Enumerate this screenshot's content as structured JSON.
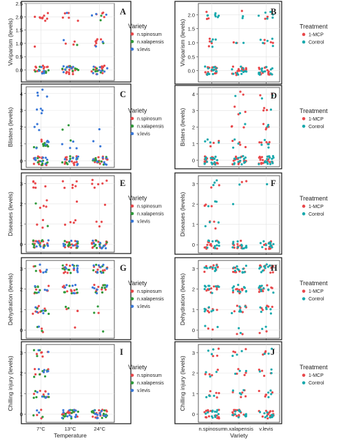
{
  "figure": {
    "x_axis_left": "Temperature",
    "x_axis_right": "Variety"
  },
  "colors": {
    "n.spinosum": "#e8474a",
    "n.xalapensis": "#2f9a3a",
    "v.levis": "#3a78d8",
    "1-MCP": "#e8474a",
    "Control": "#18a9ad"
  },
  "chart_data": [
    {
      "type": "scatter",
      "panel": "A",
      "ylabel": "Viviparism (levels)",
      "x_categories": [
        "7°C",
        "13°C",
        "24°C"
      ],
      "show_x_labels": false,
      "ylim": [
        -0.4,
        2.5
      ],
      "yticks": [
        0,
        0.5,
        1,
        1.5,
        2,
        2.5
      ],
      "ytick_labels": [
        "0.0",
        "0.5",
        "1.0",
        "1.5",
        "2.0",
        "2.5"
      ],
      "legend": {
        "title": "Variety",
        "entries": [
          "n.spinosum",
          "n.xalapensis",
          "v.levis"
        ],
        "keys": [
          "n.spinosum",
          "n.xalapensis",
          "v.levis"
        ]
      },
      "counts": [
        {
          "y": 0,
          "per_x": [
            [
              14,
              8,
              6
            ],
            [
              12,
              8,
              7
            ],
            [
              12,
              6,
              8
            ]
          ]
        },
        {
          "y": 1,
          "per_x": [
            [
              1,
              0,
              0
            ],
            [
              3,
              1,
              1
            ],
            [
              6,
              1,
              2
            ]
          ]
        },
        {
          "y": 2,
          "per_x": [
            [
              10,
              0,
              0
            ],
            [
              5,
              0,
              1
            ],
            [
              4,
              2,
              3
            ]
          ]
        }
      ]
    },
    {
      "type": "scatter",
      "panel": "B",
      "ylabel": "Viviparism (levels)",
      "x_categories": [
        "n.spinosum",
        "n.xalapensis",
        "v.levis"
      ],
      "show_x_labels": false,
      "ylim": [
        -0.4,
        2.4
      ],
      "yticks": [
        0,
        0.5,
        1,
        1.5,
        2
      ],
      "ytick_labels": [
        "0.0",
        "0.5",
        "1.0",
        "1.5",
        "2.0"
      ],
      "legend": {
        "title": "Treatment",
        "entries": [
          "1-MCP",
          "Control"
        ],
        "keys": [
          "1-MCP",
          "Control"
        ]
      },
      "counts": [
        {
          "y": 0,
          "per_x": [
            [
              14,
              14
            ],
            [
              14,
              12
            ],
            [
              14,
              14
            ]
          ]
        },
        {
          "y": 1,
          "per_x": [
            [
              4,
              4
            ],
            [
              2,
              2
            ],
            [
              4,
              5
            ]
          ]
        },
        {
          "y": 2,
          "per_x": [
            [
              3,
              7
            ],
            [
              1,
              2
            ],
            [
              2,
              6
            ]
          ]
        }
      ]
    },
    {
      "type": "scatter",
      "panel": "C",
      "ylabel": "Blisters (levels)",
      "x_categories": [
        "7°C",
        "13°C",
        "24°C"
      ],
      "show_x_labels": false,
      "ylim": [
        -0.4,
        4.4
      ],
      "yticks": [
        0,
        1,
        2,
        3,
        4
      ],
      "ytick_labels": [
        "0",
        "1",
        "2",
        "3",
        "4"
      ],
      "legend": {
        "title": "Variety",
        "entries": [
          "n.spinosum",
          "n.xalapensis",
          "v.levis"
        ],
        "keys": [
          "n.spinosum",
          "n.xalapensis",
          "v.levis"
        ]
      },
      "counts": [
        {
          "y": 0,
          "per_x": [
            [
              12,
              8,
              8
            ],
            [
              12,
              8,
              8
            ],
            [
              12,
              8,
              8
            ]
          ]
        },
        {
          "y": 1,
          "per_x": [
            [
              4,
              9,
              5
            ],
            [
              0,
              1,
              4
            ],
            [
              0,
              0,
              2
            ]
          ]
        },
        {
          "y": 2,
          "per_x": [
            [
              0,
              0,
              3
            ],
            [
              0,
              2,
              0
            ],
            [
              0,
              0,
              1
            ]
          ]
        },
        {
          "y": 3,
          "per_x": [
            [
              0,
              0,
              4
            ],
            [
              0,
              0,
              0
            ],
            [
              0,
              0,
              0
            ]
          ]
        },
        {
          "y": 4,
          "per_x": [
            [
              0,
              0,
              4
            ],
            [
              0,
              0,
              0
            ],
            [
              0,
              0,
              0
            ]
          ]
        }
      ]
    },
    {
      "type": "scatter",
      "panel": "D",
      "ylabel": "Bisters (levels)",
      "x_categories": [
        "n.spinosum",
        "n.xalapensis",
        "v.levis"
      ],
      "show_x_labels": false,
      "ylim": [
        -0.4,
        4.4
      ],
      "yticks": [
        0,
        1,
        2,
        3,
        4
      ],
      "ytick_labels": [
        "0",
        "1",
        "2",
        "3",
        "4"
      ],
      "legend": {
        "title": "Treatment",
        "entries": [
          "1-MCP",
          "Control"
        ],
        "keys": [
          "1-MCP",
          "Control"
        ]
      },
      "counts": [
        {
          "y": 0,
          "per_x": [
            [
              16,
              16
            ],
            [
              16,
              14
            ],
            [
              16,
              16
            ]
          ]
        },
        {
          "y": 1,
          "per_x": [
            [
              3,
              4
            ],
            [
              4,
              3
            ],
            [
              5,
              5
            ]
          ]
        },
        {
          "y": 2,
          "per_x": [
            [
              0,
              0
            ],
            [
              3,
              1
            ],
            [
              4,
              2
            ]
          ]
        },
        {
          "y": 3,
          "per_x": [
            [
              0,
              0
            ],
            [
              3,
              1
            ],
            [
              3,
              1
            ]
          ]
        },
        {
          "y": 4,
          "per_x": [
            [
              0,
              0
            ],
            [
              2,
              1
            ],
            [
              2,
              2
            ]
          ]
        }
      ]
    },
    {
      "type": "scatter",
      "panel": "E",
      "ylabel": "Diseases (levels)",
      "x_categories": [
        "7°C",
        "13°C",
        "24°C"
      ],
      "show_x_labels": false,
      "ylim": [
        -0.4,
        3.4
      ],
      "yticks": [
        0,
        1,
        2,
        3
      ],
      "ytick_labels": [
        "0",
        "1",
        "2",
        "3"
      ],
      "legend": {
        "title": "Variety",
        "entries": [
          "n.spinosum",
          "n.xalapensis",
          "v.levis"
        ],
        "keys": [
          "n.spinosum",
          "n.xalapensis",
          "v.levis"
        ]
      },
      "counts": [
        {
          "y": 0,
          "per_x": [
            [
              12,
              9,
              8
            ],
            [
              12,
              9,
              8
            ],
            [
              12,
              9,
              8
            ]
          ]
        },
        {
          "y": 1,
          "per_x": [
            [
              3,
              1,
              0
            ],
            [
              4,
              0,
              0
            ],
            [
              3,
              0,
              0
            ]
          ]
        },
        {
          "y": 2,
          "per_x": [
            [
              4,
              1,
              0
            ],
            [
              1,
              0,
              0
            ],
            [
              1,
              0,
              0
            ]
          ]
        },
        {
          "y": 3,
          "per_x": [
            [
              6,
              0,
              0
            ],
            [
              6,
              0,
              0
            ],
            [
              6,
              0,
              0
            ]
          ]
        }
      ]
    },
    {
      "type": "scatter",
      "panel": "F",
      "ylabel": "Diseases (levels)",
      "x_categories": [
        "n.spinosum",
        "n.xalapensis",
        "v.levis"
      ],
      "show_x_labels": false,
      "ylim": [
        -0.4,
        3.4
      ],
      "yticks": [
        0,
        1,
        2,
        3
      ],
      "ytick_labels": [
        "0",
        "1",
        "2",
        "3"
      ],
      "legend": {
        "title": "Treatment",
        "entries": [
          "1-MCP",
          "Control"
        ],
        "keys": [
          "1-MCP",
          "Control"
        ]
      },
      "counts": [
        {
          "y": 0,
          "per_x": [
            [
              12,
              12
            ],
            [
              12,
              12
            ],
            [
              12,
              12
            ]
          ]
        },
        {
          "y": 1,
          "per_x": [
            [
              3,
              3
            ],
            [
              0,
              0
            ],
            [
              0,
              0
            ]
          ]
        },
        {
          "y": 2,
          "per_x": [
            [
              3,
              3
            ],
            [
              0,
              1
            ],
            [
              0,
              0
            ]
          ]
        },
        {
          "y": 3,
          "per_x": [
            [
              2,
              3
            ],
            [
              2,
              1
            ],
            [
              0,
              1
            ]
          ]
        }
      ]
    },
    {
      "type": "scatter",
      "panel": "G",
      "ylabel": "Dehydration (levels)",
      "x_categories": [
        "7°C",
        "13°C",
        "24°C"
      ],
      "show_x_labels": false,
      "ylim": [
        -0.4,
        3.4
      ],
      "yticks": [
        0,
        1,
        2,
        3
      ],
      "ytick_labels": [
        "0",
        "1",
        "2",
        "3"
      ],
      "legend": {
        "title": "Variety",
        "entries": [
          "n.spinosum",
          "n.xalapensis",
          "v.levis"
        ],
        "keys": [
          "n.spinosum",
          "n.xalapensis",
          "v.levis"
        ]
      },
      "counts": [
        {
          "y": 0,
          "per_x": [
            [
              2,
              2,
              1
            ],
            [
              1,
              0,
              0
            ],
            [
              0,
              1,
              0
            ]
          ]
        },
        {
          "y": 1,
          "per_x": [
            [
              7,
              5,
              4
            ],
            [
              3,
              2,
              0
            ],
            [
              1,
              2,
              0
            ]
          ]
        },
        {
          "y": 2,
          "per_x": [
            [
              5,
              6,
              4
            ],
            [
              8,
              6,
              6
            ],
            [
              8,
              6,
              6
            ]
          ]
        },
        {
          "y": 3,
          "per_x": [
            [
              3,
              3,
              4
            ],
            [
              8,
              8,
              8
            ],
            [
              7,
              7,
              8
            ]
          ]
        }
      ]
    },
    {
      "type": "scatter",
      "panel": "H",
      "ylabel": "Dehydration (levels)",
      "x_categories": [
        "n.spinosum",
        "n.xalapensis",
        "v.levis"
      ],
      "show_x_labels": false,
      "ylim": [
        -0.4,
        3.4
      ],
      "yticks": [
        0,
        1,
        2,
        3
      ],
      "ytick_labels": [
        "0",
        "1",
        "2",
        "3"
      ],
      "legend": {
        "title": "Treatment",
        "entries": [
          "1-MCP",
          "Control"
        ],
        "keys": [
          "1-MCP",
          "Control"
        ]
      },
      "counts": [
        {
          "y": 0,
          "per_x": [
            [
              2,
              2
            ],
            [
              2,
              2
            ],
            [
              2,
              2
            ]
          ]
        },
        {
          "y": 1,
          "per_x": [
            [
              6,
              6
            ],
            [
              6,
              6
            ],
            [
              6,
              6
            ]
          ]
        },
        {
          "y": 2,
          "per_x": [
            [
              10,
              10
            ],
            [
              10,
              10
            ],
            [
              10,
              10
            ]
          ]
        },
        {
          "y": 3,
          "per_x": [
            [
              10,
              10
            ],
            [
              10,
              10
            ],
            [
              10,
              10
            ]
          ]
        }
      ]
    },
    {
      "type": "scatter",
      "panel": "I",
      "ylabel": "Chilling injury (levels)",
      "x_categories": [
        "7°C",
        "13°C",
        "24°C"
      ],
      "show_x_labels": true,
      "xlabel": "Temperature",
      "ylim": [
        -0.4,
        3.4
      ],
      "yticks": [
        0,
        1,
        2,
        3
      ],
      "ytick_labels": [
        "0",
        "1",
        "2",
        "3"
      ],
      "legend": {
        "title": "Variety",
        "entries": [
          "n.spinosum",
          "n.xalapensis",
          "v.levis"
        ],
        "keys": [
          "n.spinosum",
          "n.xalapensis",
          "v.levis"
        ]
      },
      "counts": [
        {
          "y": 0,
          "per_x": [
            [
              3,
              2,
              2
            ],
            [
              14,
              12,
              12
            ],
            [
              14,
              12,
              12
            ]
          ]
        },
        {
          "y": 1,
          "per_x": [
            [
              6,
              6,
              5
            ],
            [
              0,
              0,
              0
            ],
            [
              0,
              0,
              0
            ]
          ]
        },
        {
          "y": 2,
          "per_x": [
            [
              5,
              5,
              5
            ],
            [
              0,
              0,
              0
            ],
            [
              0,
              0,
              0
            ]
          ]
        },
        {
          "y": 3,
          "per_x": [
            [
              5,
              3,
              2
            ],
            [
              0,
              0,
              0
            ],
            [
              0,
              0,
              0
            ]
          ]
        }
      ]
    },
    {
      "type": "scatter",
      "panel": "J",
      "ylabel": "Chilling injury (levels)",
      "x_categories": [
        "n.spinosum",
        "n.xalapensis",
        "v.levis"
      ],
      "show_x_labels": true,
      "xlabel": "Variety",
      "ylim": [
        -0.4,
        3.4
      ],
      "yticks": [
        0,
        1,
        2,
        3
      ],
      "ytick_labels": [
        "0",
        "1",
        "2",
        "3"
      ],
      "legend": {
        "title": "Treatment",
        "entries": [
          "1-MCP",
          "Control"
        ],
        "keys": [
          "1-MCP",
          "Control"
        ]
      },
      "counts": [
        {
          "y": 0,
          "per_x": [
            [
              14,
              12
            ],
            [
              14,
              12
            ],
            [
              14,
              12
            ]
          ]
        },
        {
          "y": 1,
          "per_x": [
            [
              5,
              4
            ],
            [
              5,
              4
            ],
            [
              5,
              4
            ]
          ]
        },
        {
          "y": 2,
          "per_x": [
            [
              4,
              3
            ],
            [
              4,
              3
            ],
            [
              4,
              3
            ]
          ]
        },
        {
          "y": 3,
          "per_x": [
            [
              3,
              3
            ],
            [
              3,
              3
            ],
            [
              3,
              3
            ]
          ]
        }
      ]
    }
  ]
}
